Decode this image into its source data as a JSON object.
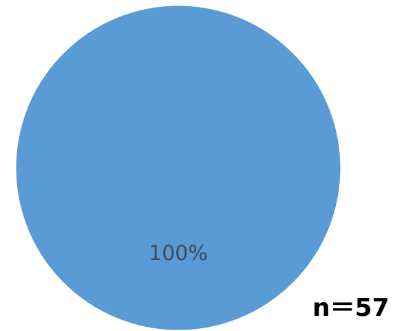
{
  "chart_data": {
    "type": "pie",
    "slices": [
      {
        "value": 100,
        "label": "100%",
        "color": "#5b9bd5"
      }
    ],
    "annotation": "n＝57"
  }
}
